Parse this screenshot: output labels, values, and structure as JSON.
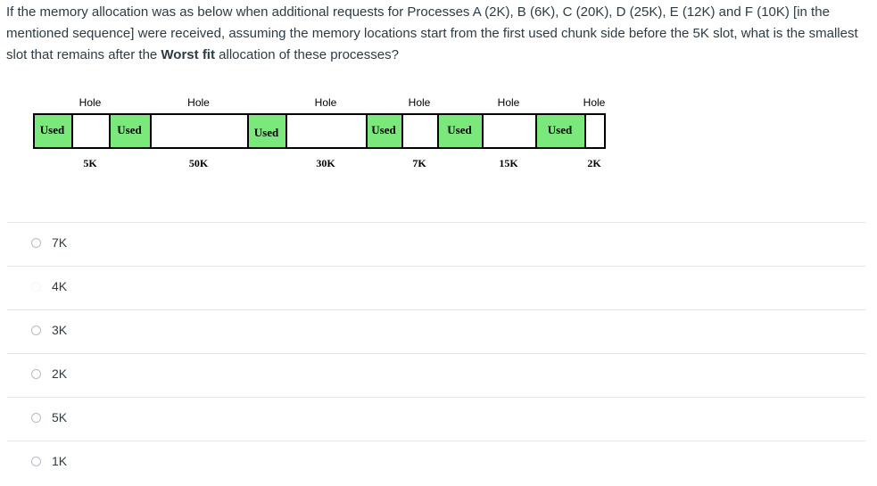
{
  "question": {
    "before": "If the memory allocation was as below when additional requests for Processes A (2K), B (6K), C (20K), D (25K), E (12K) and F (10K) [in the mentioned sequence] were received, assuming the memory locations start from the first used chunk side before the 5K slot, what is the smallest slot that remains after the",
    "bold": "Worst fit",
    "after": "allocation of these processes?"
  },
  "memory": {
    "blocks": [
      {
        "text": "Used"
      },
      {
        "header": "Hole",
        "size": "5K"
      },
      {
        "text": "Used"
      },
      {
        "header": "Hole",
        "size": "50K"
      },
      {
        "text": "Used"
      },
      {
        "header": "Hole",
        "size": "30K"
      },
      {
        "text": "Used"
      },
      {
        "header": "Hole",
        "size": "7K"
      },
      {
        "text": "Used"
      },
      {
        "header": "Hole",
        "size": "15K"
      },
      {
        "text": "Used"
      },
      {
        "header": "Hole",
        "size": "2K"
      }
    ]
  },
  "options": [
    "7K",
    "4K",
    "3K",
    "2K",
    "5K",
    "1K"
  ]
}
